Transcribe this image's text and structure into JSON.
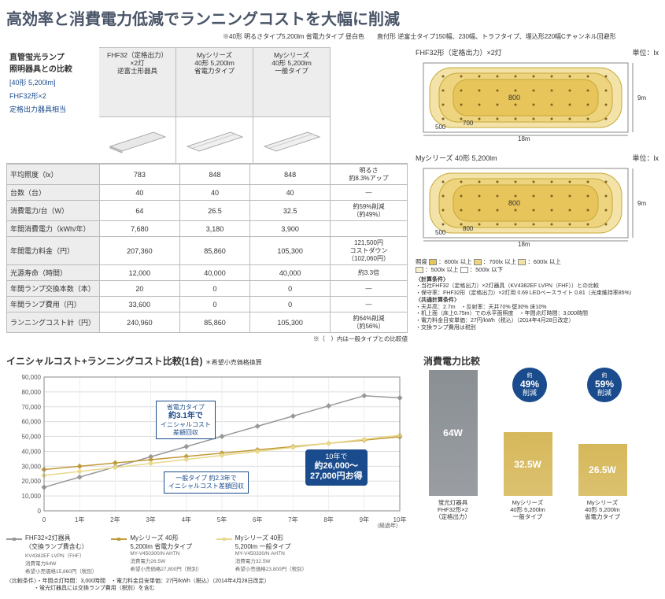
{
  "title": "高効率と消費電力低減でランニングコストを大幅に削減",
  "subtitle_note": "※40形 明るさタイプ5,200lm 省電力タイプ 昼白色　　直付形 逆富士タイプ150幅、230幅、トラフタイプ、埋込形220幅Cチャンネル回避形",
  "cmp": {
    "label1": "直管蛍光ランプ",
    "label2": "照明器具との比較",
    "label3": "[40形 5,200lm]",
    "label4": "FHF32形×2",
    "label5": "定格出力器具相当",
    "col1a": "FHF32（定格出力）",
    "col1b": "×2灯",
    "col1c": "逆富士形器具",
    "col2a": "Myシリーズ",
    "col2b": "40形 5,200lm",
    "col2c": "省電力タイプ",
    "col3a": "Myシリーズ",
    "col3b": "40形 5,200lm",
    "col3c": "一般タイプ",
    "rows": {
      "r1": {
        "l": "平均照度（lx）",
        "c1": "783",
        "c2": "848",
        "c3": "848",
        "n": "明るさ\n約8.3%アップ"
      },
      "r2": {
        "l": "台数（台）",
        "c1": "40",
        "c2": "40",
        "c3": "40",
        "n": "—"
      },
      "r3": {
        "l": "消費電力/台（W）",
        "c1": "64",
        "c2": "26.5",
        "c3": "32.5",
        "n": "約59%削減\n（約49%）"
      },
      "r4": {
        "l": "年間消費電力（kWh/年）",
        "c1": "7,680",
        "c2": "3,180",
        "c3": "3,900",
        "n": ""
      },
      "r5": {
        "l": "年間電力料金（円）",
        "c1": "207,360",
        "c2": "85,860",
        "c3": "105,300",
        "n": "121,500円\nコストダウン\n（102,060円）"
      },
      "r6": {
        "l": "光源寿命（時間）",
        "c1": "12,000",
        "c2": "40,000",
        "c3": "40,000",
        "n": "約3.3倍"
      },
      "r7": {
        "l": "年間ランプ交換本数（本）",
        "c1": "20",
        "c2": "0",
        "c3": "0",
        "n": "—"
      },
      "r8": {
        "l": "年間ランプ費用（円）",
        "c1": "33,600",
        "c2": "0",
        "c3": "0",
        "n": "—"
      },
      "r9": {
        "l": "ランニングコスト計（円）",
        "c1": "240,960",
        "c2": "85,860",
        "c3": "105,300",
        "n": "約64%削減\n（約56%）"
      }
    },
    "footnote": "※（　）内は一般タイプとの比較値"
  },
  "rooms": {
    "r1": {
      "title": "FHF32形（定格出力）×2灯",
      "unit": "単位：lx",
      "w": "18m",
      "h": "9m",
      "v_center": "800",
      "v_mid": "700",
      "v_edge": "500"
    },
    "r2": {
      "title": "Myシリーズ 40形 5,200lm",
      "unit": "単位：lx",
      "w": "18m",
      "h": "9m",
      "v_center": "800",
      "v_mid": "800",
      "v_edge": "500"
    },
    "legend_hdr": "照度",
    "legend": {
      "a": "：800lx 以上",
      "b": "：700lx 以上",
      "c": "：600lx 以上",
      "d": "：500lx 以上",
      "e": "：500lx 以下"
    },
    "legend_colors": {
      "a": "#e8c55a",
      "b": "#eed47f",
      "c": "#f3e3a8",
      "d": "#f8f0cf",
      "e": "#ffffff"
    },
    "cond_hdr": "〈計算条件〉",
    "cond1": "・当社FHF32（定格出力）×2灯器具（KV4382EF LVPN（FHF））との比較",
    "cond2": "・保守率：FHF32形（定格出力）×2灯用 0.69 LEDベースライト 0.81（光束維持率85%）",
    "cond3": "〈共通計算条件〉",
    "cond4": "・天井高：2.7m　・反射率：天井70% 壁30% 床10%",
    "cond5": "・机上面（床上0.75m）での水平面照度　・年間点灯時間：3,000時間",
    "cond6": "・電力料金目安単価：27円/kWh（税込）（2014年4月28日改定）",
    "cond7": "・交換ランプ費用は税別"
  },
  "linechart": {
    "title": "イニシャルコスト+ランニングコスト比較(1台)",
    "title_note": "＊希望小売価格換算",
    "ylabel_vals": [
      "0",
      "10,000",
      "20,000",
      "30,000",
      "40,000",
      "50,000",
      "60,000",
      "70,000",
      "80,000",
      "90,000"
    ],
    "xlabel_vals": [
      "0",
      "1年",
      "2年",
      "3年",
      "4年",
      "5年",
      "6年",
      "7年",
      "8年",
      "9年",
      "10年"
    ],
    "xaxis_note": "（経過年）",
    "ylim": [
      0,
      90000
    ],
    "xlim": [
      0,
      10
    ],
    "series": {
      "fhf": {
        "color": "#999999",
        "label": "FHF32×2灯器具\n（交換ランプ費含む）",
        "sub": "KV4382EF LVPN（FHF）\n消費電力64W\n希望小売価格15,860円（税別）",
        "pts": [
          15860,
          22700,
          29540,
          36380,
          43220,
          50060,
          56900,
          63740,
          70580,
          77420,
          76000
        ]
      },
      "sav": {
        "color": "#c19a3a",
        "label": "Myシリーズ 40形\n5,200lm 省電力タイプ",
        "sub": "MY-V450300/N AHTN\n消費電力26.5W\n希望小売価格27,800円（税別）",
        "pts": [
          27800,
          30000,
          32200,
          34400,
          36600,
          38800,
          41000,
          43200,
          45400,
          47600,
          49800
        ]
      },
      "gen": {
        "color": "#e8d88a",
        "label": "Myシリーズ 40形\n5,200lm 一般タイプ",
        "sub": "MY-V450330/N AHTN\n消費電力32.5W\n希望小売価格23,800円（税別）",
        "pts": [
          23800,
          26500,
          29200,
          31900,
          34600,
          37300,
          40000,
          42700,
          45400,
          48100,
          50800
        ]
      }
    },
    "callout1a": "省電力タイプ",
    "callout1b": "約3.1年で",
    "callout1c": "イニシャルコスト",
    "callout1d": "差額回収",
    "callout2a": "一般タイプ 約2.3年で",
    "callout2b": "イニシャルコスト差額回収",
    "callout3a": "10年で",
    "callout3b": "約26,000〜",
    "callout3c": "27,000円お得",
    "foot1": "〈比較条件〉・年間点灯時間：3,000時間　・電力料金目安単価：27円/kWh（税込）（2014年4月28日改定）",
    "foot2": "　　　　　・蛍光灯器具には交換ランプ費用（税別）を含む"
  },
  "power": {
    "title": "消費電力比較",
    "bars": {
      "b1": {
        "val": "64W",
        "h": 160,
        "color": "#8a8f94",
        "l1": "蛍光灯器具",
        "l2": "FHF32形×2",
        "l3": "（定格出力）"
      },
      "b2": {
        "val": "32.5W",
        "h": 81,
        "color": "#d6b85a",
        "l1": "Myシリーズ",
        "l2": "40形 5,200lm",
        "l3": "一般タイプ",
        "badge1": "約49%",
        "badge2": "削減"
      },
      "b3": {
        "val": "26.5W",
        "h": 66,
        "color": "#d6b85a",
        "l1": "Myシリーズ",
        "l2": "40形 5,200lm",
        "l3": "省電力タイプ",
        "badge1": "約59%",
        "badge2": "削減"
      }
    }
  }
}
